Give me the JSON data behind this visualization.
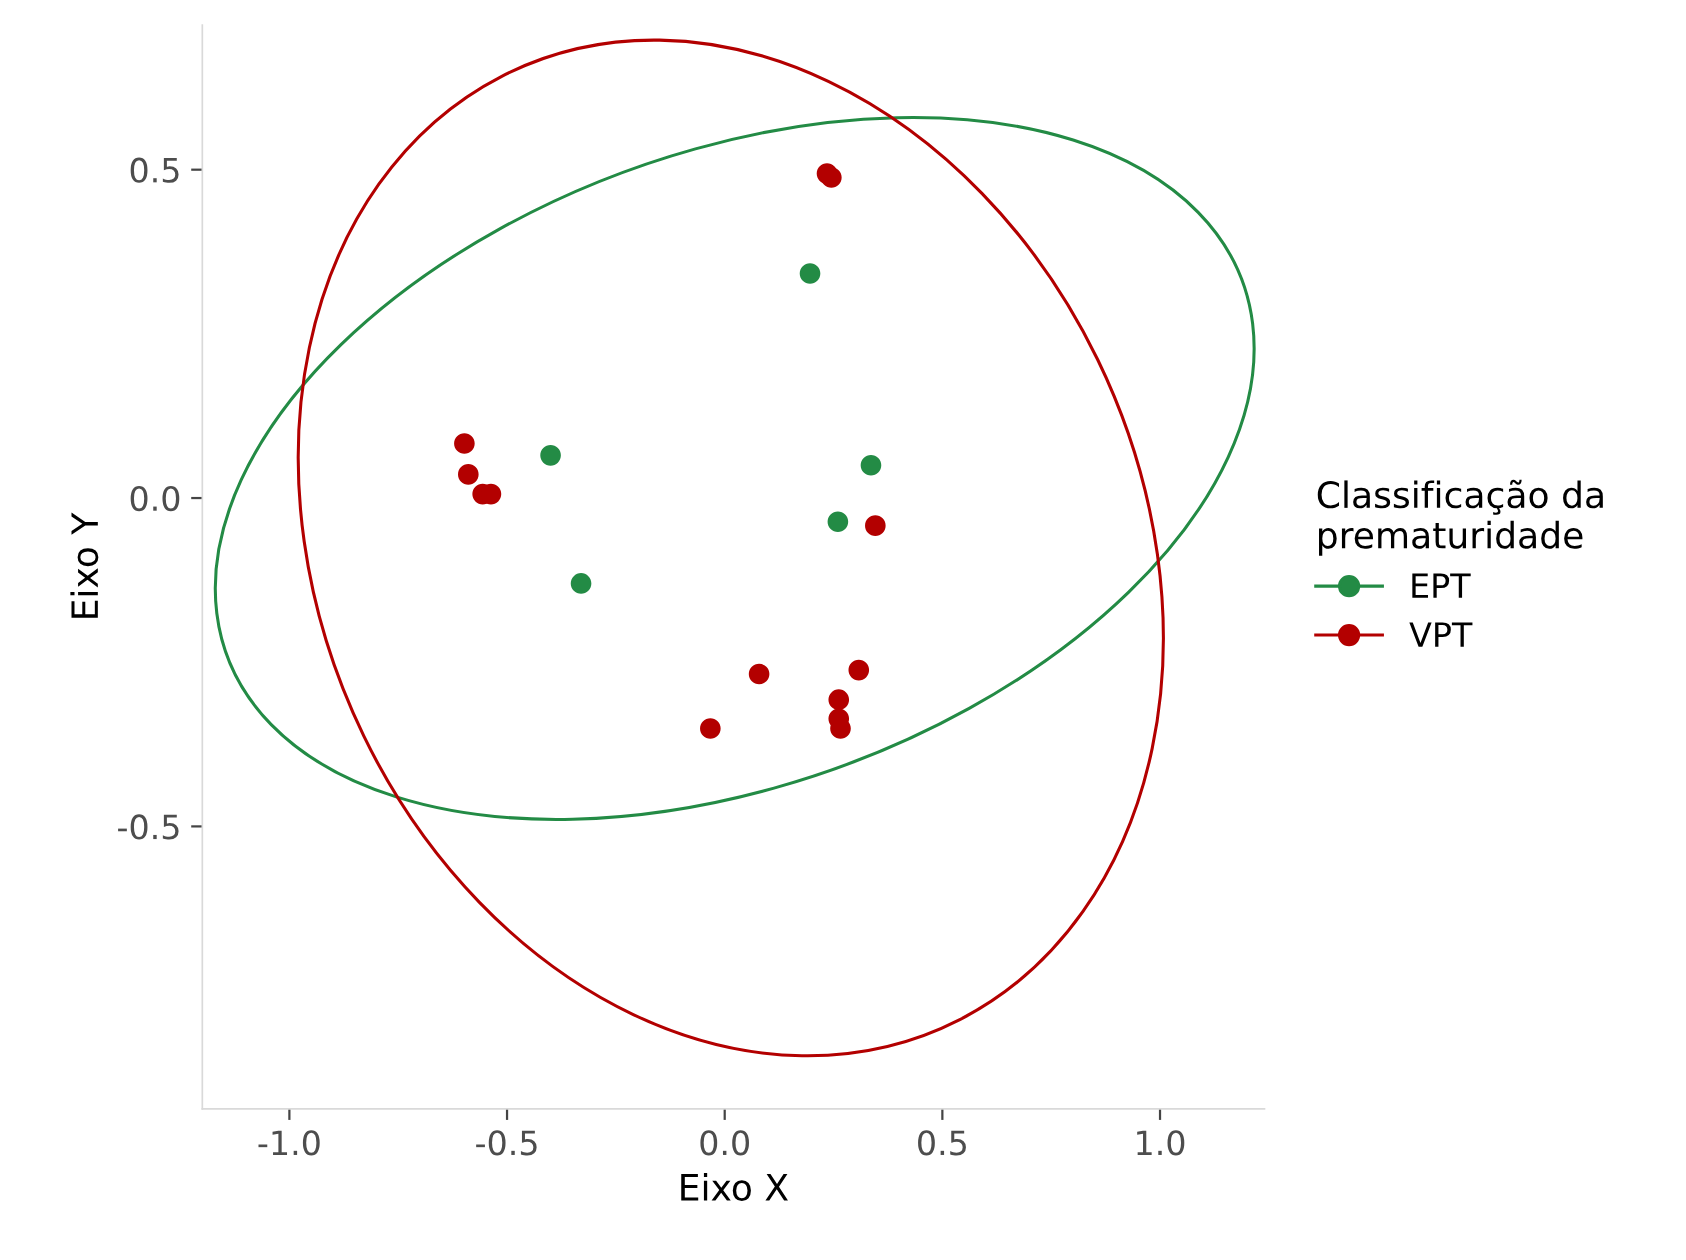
{
  "chart_data": {
    "type": "scatter",
    "xlabel": "Eixo X",
    "ylabel": "Eixo Y",
    "legend_title": "Classificação da\nprematuridade",
    "legend": "right",
    "grid": false,
    "marker": "circle",
    "xlim": [
      -1.2,
      1.24
    ],
    "ylim": [
      -0.93,
      0.72
    ],
    "xticks": [
      {
        "value": -1.0,
        "label": "-1.0"
      },
      -0.5,
      {
        "value": 0.0,
        "label": "0.0"
      },
      0.5,
      {
        "value": 1.0,
        "label": "1.0"
      }
    ],
    "yticks": [
      -0.5,
      {
        "value": 0.0,
        "label": "0.0"
      },
      0.5
    ],
    "series": [
      {
        "name": "EPT",
        "color": "#238b45",
        "x": [
          0.196,
          -0.4,
          0.336,
          0.26,
          -0.33
        ],
        "values": [
          0.342,
          0.065,
          0.05,
          -0.036,
          -0.13
        ]
      },
      {
        "name": "VPT",
        "color": "#b30000",
        "x": [
          0.235,
          0.245,
          -0.598,
          -0.589,
          -0.556,
          -0.537,
          0.346,
          0.079,
          0.308,
          0.262,
          0.262,
          0.266,
          -0.033
        ],
        "values": [
          0.494,
          0.488,
          0.083,
          0.036,
          0.006,
          0.006,
          -0.042,
          -0.268,
          -0.262,
          -0.307,
          -0.336,
          -0.351,
          -0.351
        ]
      }
    ]
  }
}
